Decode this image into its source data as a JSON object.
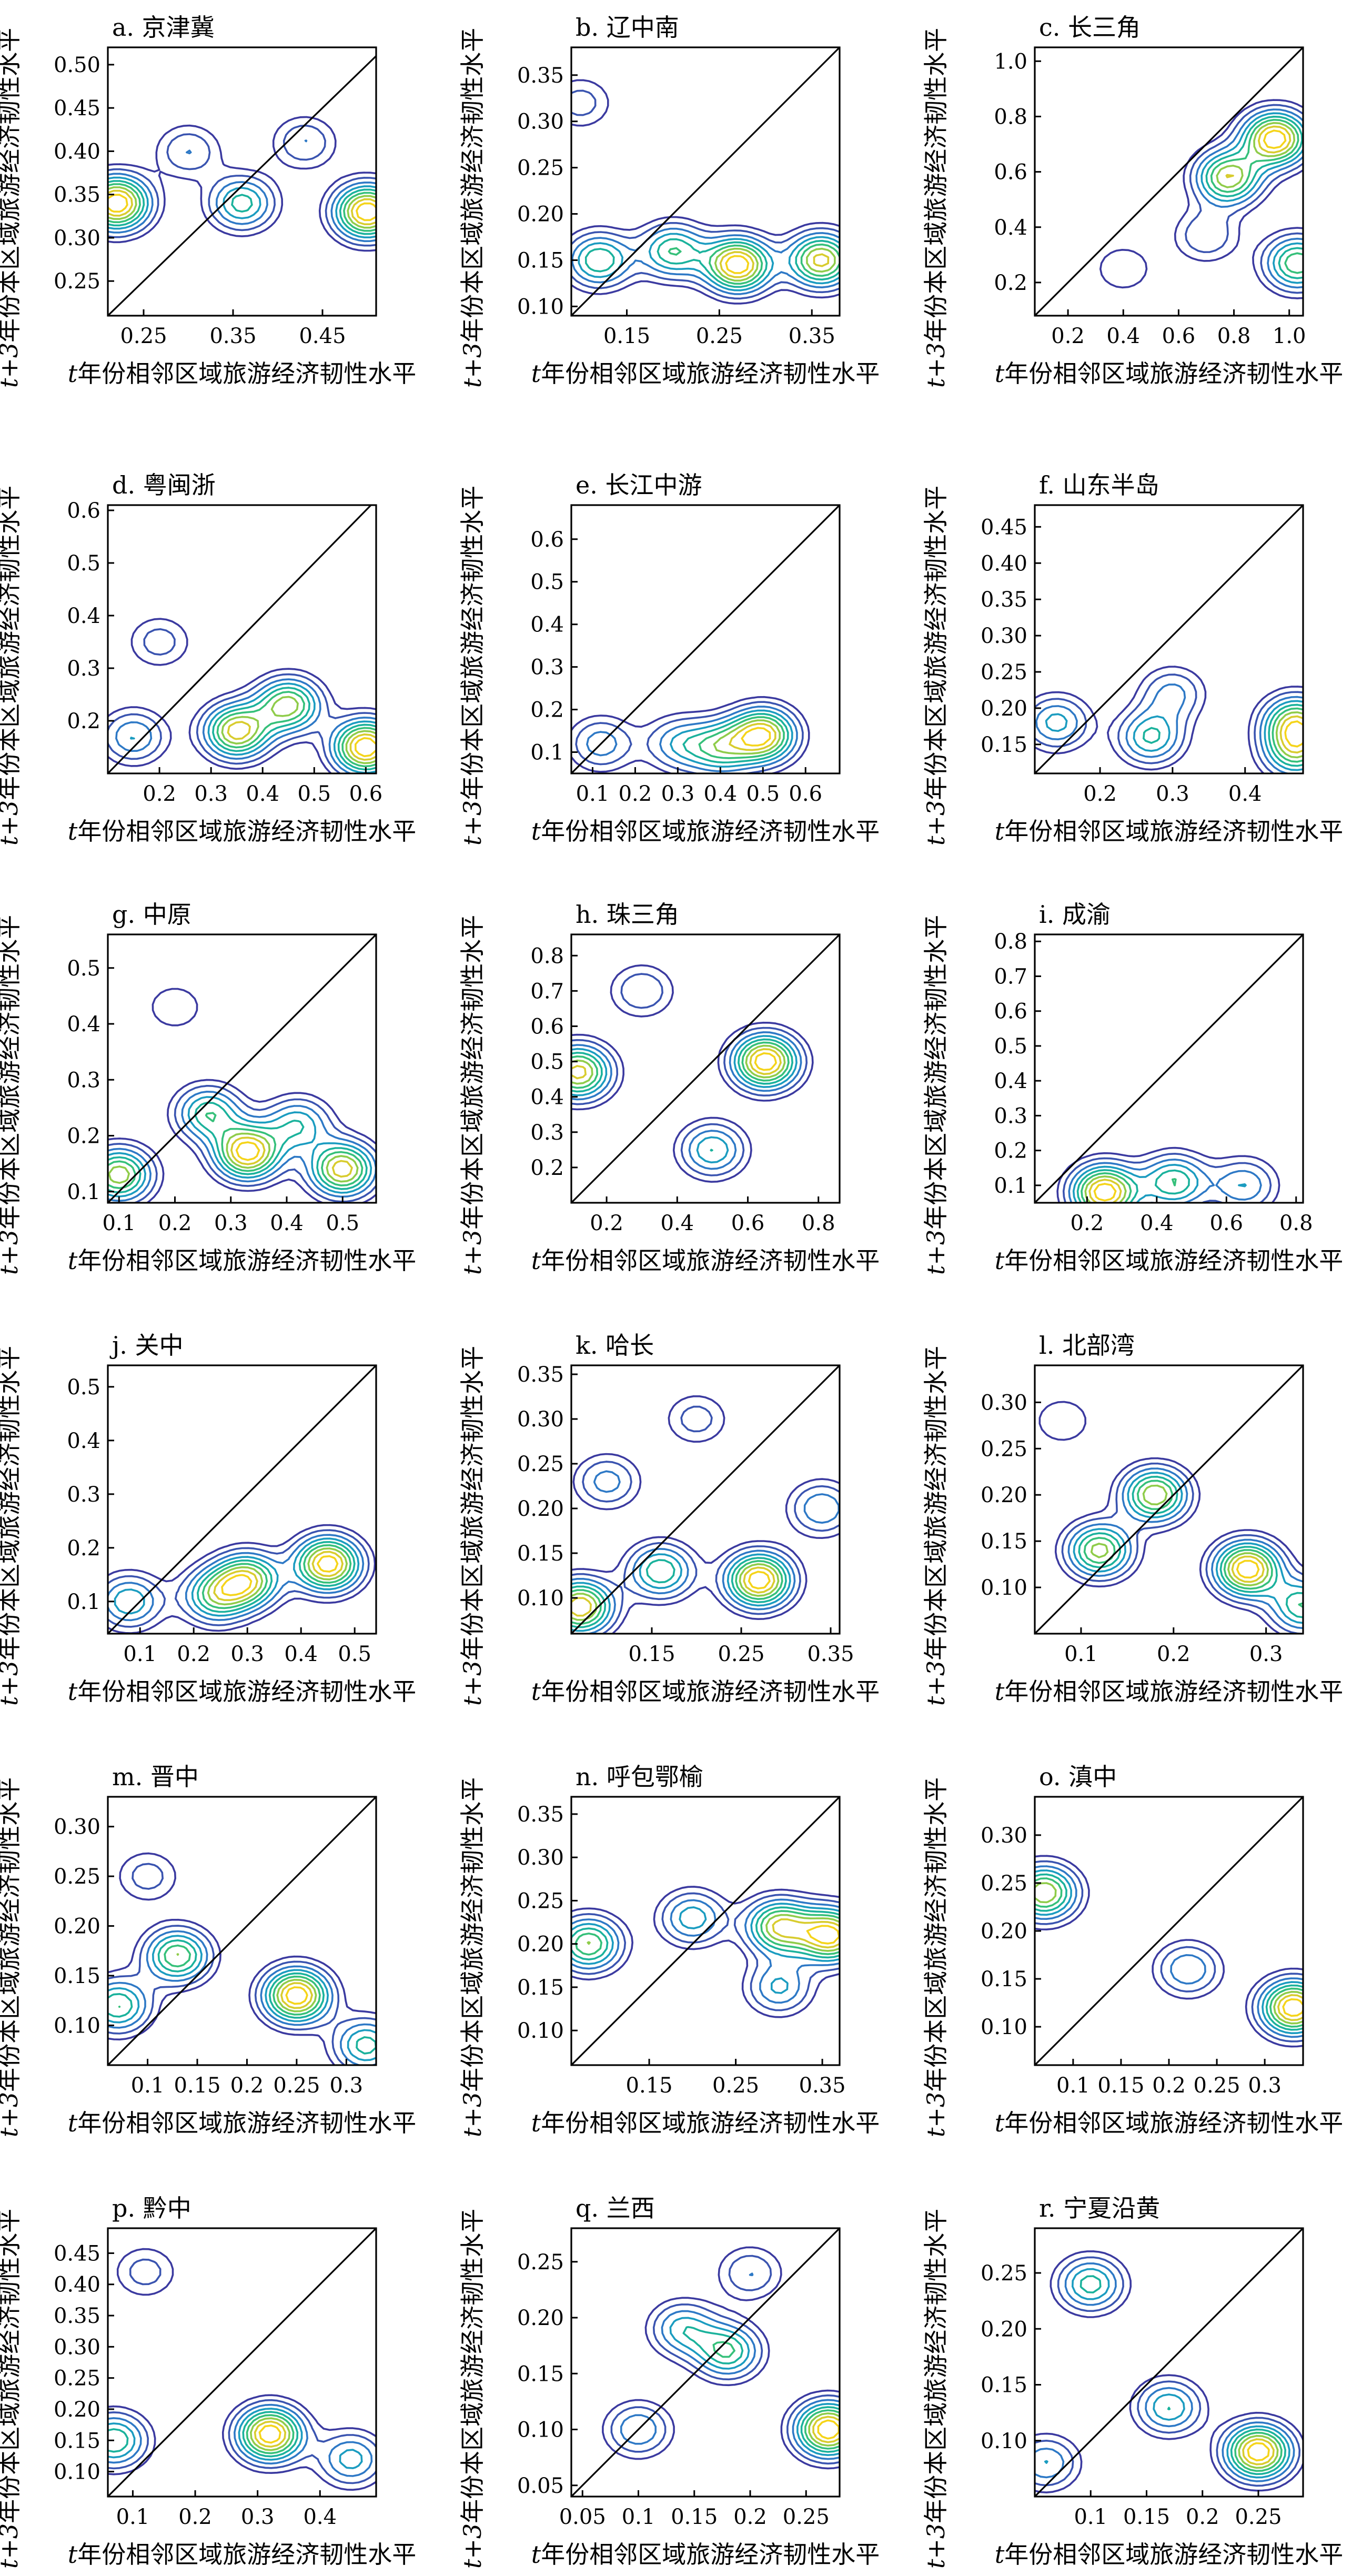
{
  "figure": {
    "panels": [
      {
        "title": "a. 京津冀",
        "xticks": [
          "0.25",
          "0.35",
          "0.45"
        ],
        "yticks": [
          "0.25",
          "0.30",
          "0.35",
          "0.40",
          "0.45",
          "0.50"
        ]
      },
      {
        "title": "b. 辽中南",
        "xticks": [
          "0.15",
          "0.25",
          "0.35"
        ],
        "yticks": [
          "0.10",
          "0.15",
          "0.20",
          "0.25",
          "0.30",
          "0.35"
        ]
      },
      {
        "title": "c. 长三角",
        "xticks": [
          "0.2",
          "0.4",
          "0.6",
          "0.8",
          "1.0"
        ],
        "yticks": [
          "0.2",
          "0.4",
          "0.6",
          "0.8",
          "1.0"
        ]
      },
      {
        "title": "d. 粤闽浙",
        "xticks": [
          "0.2",
          "0.3",
          "0.4",
          "0.5",
          "0.6"
        ],
        "yticks": [
          "0.2",
          "0.3",
          "0.4",
          "0.5",
          "0.6"
        ]
      },
      {
        "title": "e. 长江中游",
        "xticks": [
          "0.1",
          "0.2",
          "0.3",
          "0.4",
          "0.5",
          "0.6"
        ],
        "yticks": [
          "0.1",
          "0.2",
          "0.3",
          "0.4",
          "0.5",
          "0.6"
        ]
      },
      {
        "title": "f. 山东半岛",
        "xticks": [
          "0.2",
          "0.3",
          "0.4"
        ],
        "yticks": [
          "0.15",
          "0.20",
          "0.25",
          "0.30",
          "0.35",
          "0.40",
          "0.45"
        ]
      },
      {
        "title": "g. 中原",
        "xticks": [
          "0.1",
          "0.2",
          "0.3",
          "0.4",
          "0.5"
        ],
        "yticks": [
          "0.1",
          "0.2",
          "0.3",
          "0.4",
          "0.5"
        ]
      },
      {
        "title": "h. 珠三角",
        "xticks": [
          "0.2",
          "0.4",
          "0.6",
          "0.8"
        ],
        "yticks": [
          "0.2",
          "0.3",
          "0.4",
          "0.5",
          "0.6",
          "0.7",
          "0.8"
        ]
      },
      {
        "title": "i. 成渝",
        "xticks": [
          "0.2",
          "0.4",
          "0.6",
          "0.8"
        ],
        "yticks": [
          "0.1",
          "0.2",
          "0.3",
          "0.4",
          "0.5",
          "0.6",
          "0.7",
          "0.8"
        ]
      },
      {
        "title": "j. 关中",
        "xticks": [
          "0.1",
          "0.2",
          "0.3",
          "0.4",
          "0.5"
        ],
        "yticks": [
          "0.1",
          "0.2",
          "0.3",
          "0.4",
          "0.5"
        ]
      },
      {
        "title": "k. 哈长",
        "xticks": [
          "0.15",
          "0.25",
          "0.35"
        ],
        "yticks": [
          "0.10",
          "0.15",
          "0.20",
          "0.25",
          "0.30",
          "0.35"
        ]
      },
      {
        "title": "l. 北部湾",
        "xticks": [
          "0.1",
          "0.2",
          "0.3"
        ],
        "yticks": [
          "0.10",
          "0.15",
          "0.20",
          "0.25",
          "0.30"
        ]
      },
      {
        "title": "m. 晋中",
        "xticks": [
          "0.1",
          "0.15",
          "0.2",
          "0.25",
          "0.3"
        ],
        "yticks": [
          "0.10",
          "0.15",
          "0.20",
          "0.25",
          "0.30"
        ]
      },
      {
        "title": "n. 呼包鄂榆",
        "xticks": [
          "0.15",
          "0.25",
          "0.35"
        ],
        "yticks": [
          "0.10",
          "0.15",
          "0.20",
          "0.25",
          "0.30",
          "0.35"
        ]
      },
      {
        "title": "o. 滇中",
        "xticks": [
          "0.1",
          "0.15",
          "0.2",
          "0.25",
          "0.3"
        ],
        "yticks": [
          "0.10",
          "0.15",
          "0.20",
          "0.25",
          "0.30"
        ]
      },
      {
        "title": "p. 黔中",
        "xticks": [
          "0.1",
          "0.2",
          "0.3",
          "0.4"
        ],
        "yticks": [
          "0.10",
          "0.15",
          "0.20",
          "0.25",
          "0.30",
          "0.35",
          "0.40",
          "0.45"
        ]
      },
      {
        "title": "q. 兰西",
        "xticks": [
          "0.05",
          "0.1",
          "0.15",
          "0.2",
          "0.25"
        ],
        "yticks": [
          "0.05",
          "0.10",
          "0.15",
          "0.20",
          "0.25"
        ]
      },
      {
        "title": "r. 宁夏沿黄",
        "xticks": [
          "0.1",
          "0.15",
          "0.2",
          "0.25"
        ],
        "yticks": [
          "0.10",
          "0.15",
          "0.20",
          "0.25"
        ]
      }
    ],
    "xlabel_prefix": "t",
    "xlabel_text": "年份相邻区域旅游经济韧性水平",
    "ylabel_prefix": "t+3",
    "ylabel_text": "年份本区域旅游经济韧性水平"
  },
  "chart_data": [
    {
      "type": "contour",
      "title": "a. 京津冀",
      "xlim": [
        0.21,
        0.51
      ],
      "ylim": [
        0.21,
        0.52
      ],
      "diagonal": true,
      "peaks": [
        {
          "x": 0.22,
          "y": 0.34,
          "z": 1.0
        },
        {
          "x": 0.5,
          "y": 0.33,
          "z": 1.0
        },
        {
          "x": 0.36,
          "y": 0.34,
          "z": 0.55
        },
        {
          "x": 0.3,
          "y": 0.4,
          "z": 0.3
        },
        {
          "x": 0.43,
          "y": 0.41,
          "z": 0.3
        }
      ]
    },
    {
      "type": "contour",
      "title": "b. 辽中南",
      "xlim": [
        0.09,
        0.38
      ],
      "ylim": [
        0.09,
        0.38
      ],
      "diagonal": true,
      "peaks": [
        {
          "x": 0.27,
          "y": 0.145,
          "z": 1.0
        },
        {
          "x": 0.36,
          "y": 0.15,
          "z": 0.85
        },
        {
          "x": 0.2,
          "y": 0.16,
          "z": 0.6
        },
        {
          "x": 0.12,
          "y": 0.15,
          "z": 0.6
        },
        {
          "x": 0.1,
          "y": 0.32,
          "z": 0.25
        }
      ]
    },
    {
      "type": "contour",
      "title": "c. 长三角",
      "xlim": [
        0.08,
        1.05
      ],
      "ylim": [
        0.08,
        1.05
      ],
      "diagonal": true,
      "peaks": [
        {
          "x": 0.95,
          "y": 0.72,
          "z": 1.0
        },
        {
          "x": 0.78,
          "y": 0.58,
          "z": 0.8
        },
        {
          "x": 1.03,
          "y": 0.27,
          "z": 0.7
        },
        {
          "x": 0.7,
          "y": 0.37,
          "z": 0.3
        },
        {
          "x": 0.4,
          "y": 0.25,
          "z": 0.2
        }
      ]
    },
    {
      "type": "contour",
      "title": "d. 粤闽浙",
      "xlim": [
        0.1,
        0.62
      ],
      "ylim": [
        0.1,
        0.61
      ],
      "diagonal": true,
      "peaks": [
        {
          "x": 0.6,
          "y": 0.15,
          "z": 1.0
        },
        {
          "x": 0.35,
          "y": 0.18,
          "z": 0.85
        },
        {
          "x": 0.45,
          "y": 0.23,
          "z": 0.75
        },
        {
          "x": 0.15,
          "y": 0.17,
          "z": 0.4
        },
        {
          "x": 0.2,
          "y": 0.35,
          "z": 0.25
        }
      ]
    },
    {
      "type": "contour",
      "title": "e. 长江中游",
      "xlim": [
        0.05,
        0.68
      ],
      "ylim": [
        0.05,
        0.68
      ],
      "diagonal": true,
      "peaks": [
        {
          "x": 0.5,
          "y": 0.14,
          "z": 1.0
        },
        {
          "x": 0.4,
          "y": 0.11,
          "z": 0.6
        },
        {
          "x": 0.12,
          "y": 0.12,
          "z": 0.4
        },
        {
          "x": 0.3,
          "y": 0.12,
          "z": 0.4
        }
      ]
    },
    {
      "type": "contour",
      "title": "f. 山东半岛",
      "xlim": [
        0.11,
        0.48
      ],
      "ylim": [
        0.11,
        0.48
      ],
      "diagonal": true,
      "peaks": [
        {
          "x": 0.47,
          "y": 0.18,
          "z": 1.0
        },
        {
          "x": 0.47,
          "y": 0.14,
          "z": 0.8
        },
        {
          "x": 0.27,
          "y": 0.16,
          "z": 0.7
        },
        {
          "x": 0.14,
          "y": 0.18,
          "z": 0.6
        },
        {
          "x": 0.3,
          "y": 0.22,
          "z": 0.45
        }
      ]
    },
    {
      "type": "contour",
      "title": "g. 中原",
      "xlim": [
        0.08,
        0.56
      ],
      "ylim": [
        0.08,
        0.56
      ],
      "diagonal": true,
      "peaks": [
        {
          "x": 0.33,
          "y": 0.17,
          "z": 1.0
        },
        {
          "x": 0.5,
          "y": 0.14,
          "z": 0.9
        },
        {
          "x": 0.1,
          "y": 0.13,
          "z": 0.8
        },
        {
          "x": 0.26,
          "y": 0.24,
          "z": 0.6
        },
        {
          "x": 0.42,
          "y": 0.22,
          "z": 0.5
        },
        {
          "x": 0.2,
          "y": 0.43,
          "z": 0.2
        }
      ]
    },
    {
      "type": "contour",
      "title": "h. 珠三角",
      "xlim": [
        0.1,
        0.86
      ],
      "ylim": [
        0.1,
        0.86
      ],
      "diagonal": true,
      "peaks": [
        {
          "x": 0.65,
          "y": 0.5,
          "z": 1.0
        },
        {
          "x": 0.12,
          "y": 0.47,
          "z": 0.85
        },
        {
          "x": 0.5,
          "y": 0.25,
          "z": 0.5
        },
        {
          "x": 0.3,
          "y": 0.7,
          "z": 0.3
        }
      ]
    },
    {
      "type": "contour",
      "title": "i. 成渝",
      "xlim": [
        0.05,
        0.82
      ],
      "ylim": [
        0.05,
        0.82
      ],
      "diagonal": true,
      "peaks": [
        {
          "x": 0.25,
          "y": 0.08,
          "z": 1.0
        },
        {
          "x": 0.45,
          "y": 0.11,
          "z": 0.6
        },
        {
          "x": 0.65,
          "y": 0.1,
          "z": 0.4
        }
      ]
    },
    {
      "type": "contour",
      "title": "j. 关中",
      "xlim": [
        0.04,
        0.54
      ],
      "ylim": [
        0.04,
        0.54
      ],
      "diagonal": true,
      "peaks": [
        {
          "x": 0.45,
          "y": 0.17,
          "z": 1.0
        },
        {
          "x": 0.3,
          "y": 0.14,
          "z": 0.8
        },
        {
          "x": 0.24,
          "y": 0.11,
          "z": 0.6
        },
        {
          "x": 0.08,
          "y": 0.1,
          "z": 0.5
        }
      ]
    },
    {
      "type": "contour",
      "title": "k. 哈长",
      "xlim": [
        0.06,
        0.36
      ],
      "ylim": [
        0.06,
        0.36
      ],
      "diagonal": true,
      "peaks": [
        {
          "x": 0.27,
          "y": 0.12,
          "z": 1.0
        },
        {
          "x": 0.07,
          "y": 0.09,
          "z": 0.9
        },
        {
          "x": 0.16,
          "y": 0.13,
          "z": 0.6
        },
        {
          "x": 0.34,
          "y": 0.2,
          "z": 0.4
        },
        {
          "x": 0.1,
          "y": 0.23,
          "z": 0.35
        },
        {
          "x": 0.2,
          "y": 0.3,
          "z": 0.25
        }
      ]
    },
    {
      "type": "contour",
      "title": "l. 北部湾",
      "xlim": [
        0.05,
        0.34
      ],
      "ylim": [
        0.05,
        0.34
      ],
      "diagonal": true,
      "peaks": [
        {
          "x": 0.28,
          "y": 0.12,
          "z": 1.0
        },
        {
          "x": 0.18,
          "y": 0.2,
          "z": 0.8
        },
        {
          "x": 0.12,
          "y": 0.14,
          "z": 0.75
        },
        {
          "x": 0.34,
          "y": 0.08,
          "z": 0.6
        },
        {
          "x": 0.08,
          "y": 0.28,
          "z": 0.2
        }
      ]
    },
    {
      "type": "contour",
      "title": "m. 晋中",
      "xlim": [
        0.06,
        0.33
      ],
      "ylim": [
        0.06,
        0.33
      ],
      "diagonal": true,
      "peaks": [
        {
          "x": 0.25,
          "y": 0.13,
          "z": 1.0
        },
        {
          "x": 0.13,
          "y": 0.17,
          "z": 0.7
        },
        {
          "x": 0.07,
          "y": 0.12,
          "z": 0.6
        },
        {
          "x": 0.32,
          "y": 0.08,
          "z": 0.55
        },
        {
          "x": 0.1,
          "y": 0.25,
          "z": 0.25
        }
      ]
    },
    {
      "type": "contour",
      "title": "n. 呼包鄂榆",
      "xlim": [
        0.06,
        0.37
      ],
      "ylim": [
        0.06,
        0.37
      ],
      "diagonal": true,
      "peaks": [
        {
          "x": 0.36,
          "y": 0.21,
          "z": 1.0
        },
        {
          "x": 0.3,
          "y": 0.22,
          "z": 0.85
        },
        {
          "x": 0.08,
          "y": 0.2,
          "z": 0.75
        },
        {
          "x": 0.2,
          "y": 0.23,
          "z": 0.5
        },
        {
          "x": 0.3,
          "y": 0.15,
          "z": 0.45
        }
      ]
    },
    {
      "type": "contour",
      "title": "o. 滇中",
      "xlim": [
        0.06,
        0.34
      ],
      "ylim": [
        0.06,
        0.34
      ],
      "diagonal": true,
      "peaks": [
        {
          "x": 0.33,
          "y": 0.12,
          "z": 1.0
        },
        {
          "x": 0.07,
          "y": 0.24,
          "z": 0.8
        },
        {
          "x": 0.22,
          "y": 0.16,
          "z": 0.4
        }
      ]
    },
    {
      "type": "contour",
      "title": "p. 黔中",
      "xlim": [
        0.06,
        0.49
      ],
      "ylim": [
        0.06,
        0.49
      ],
      "diagonal": true,
      "peaks": [
        {
          "x": 0.32,
          "y": 0.16,
          "z": 1.0
        },
        {
          "x": 0.07,
          "y": 0.15,
          "z": 0.6
        },
        {
          "x": 0.45,
          "y": 0.12,
          "z": 0.45
        },
        {
          "x": 0.12,
          "y": 0.42,
          "z": 0.25
        }
      ]
    },
    {
      "type": "contour",
      "title": "q. 兰西",
      "xlim": [
        0.04,
        0.28
      ],
      "ylim": [
        0.04,
        0.28
      ],
      "diagonal": true,
      "peaks": [
        {
          "x": 0.27,
          "y": 0.1,
          "z": 1.0
        },
        {
          "x": 0.18,
          "y": 0.17,
          "z": 0.6
        },
        {
          "x": 0.14,
          "y": 0.19,
          "z": 0.45
        },
        {
          "x": 0.1,
          "y": 0.1,
          "z": 0.4
        },
        {
          "x": 0.2,
          "y": 0.24,
          "z": 0.3
        }
      ]
    },
    {
      "type": "contour",
      "title": "r. 宁夏沿黄",
      "xlim": [
        0.05,
        0.29
      ],
      "ylim": [
        0.05,
        0.29
      ],
      "diagonal": true,
      "peaks": [
        {
          "x": 0.25,
          "y": 0.09,
          "z": 1.0
        },
        {
          "x": 0.1,
          "y": 0.24,
          "z": 0.55
        },
        {
          "x": 0.17,
          "y": 0.13,
          "z": 0.5
        },
        {
          "x": 0.06,
          "y": 0.08,
          "z": 0.4
        }
      ]
    }
  ]
}
